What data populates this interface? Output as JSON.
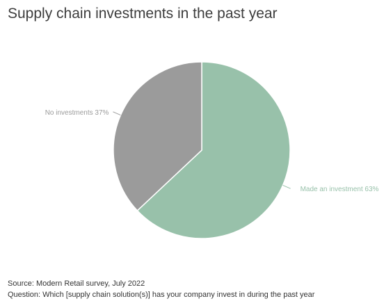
{
  "chart_data": {
    "type": "pie",
    "title": "Supply chain investments in the past year",
    "slices": [
      {
        "label": "Made an investment",
        "value": 63,
        "display": "Made an investment 63%",
        "color": "#98c1aa"
      },
      {
        "label": "No investments",
        "value": 37,
        "display": "No investments 37%",
        "color": "#9b9b9b"
      }
    ],
    "unit": "%"
  },
  "footer": {
    "source": "Source: Modern Retail survey, July 2022",
    "question": "Question: Which [supply chain solution(s)] has your company invest in during the past year"
  }
}
